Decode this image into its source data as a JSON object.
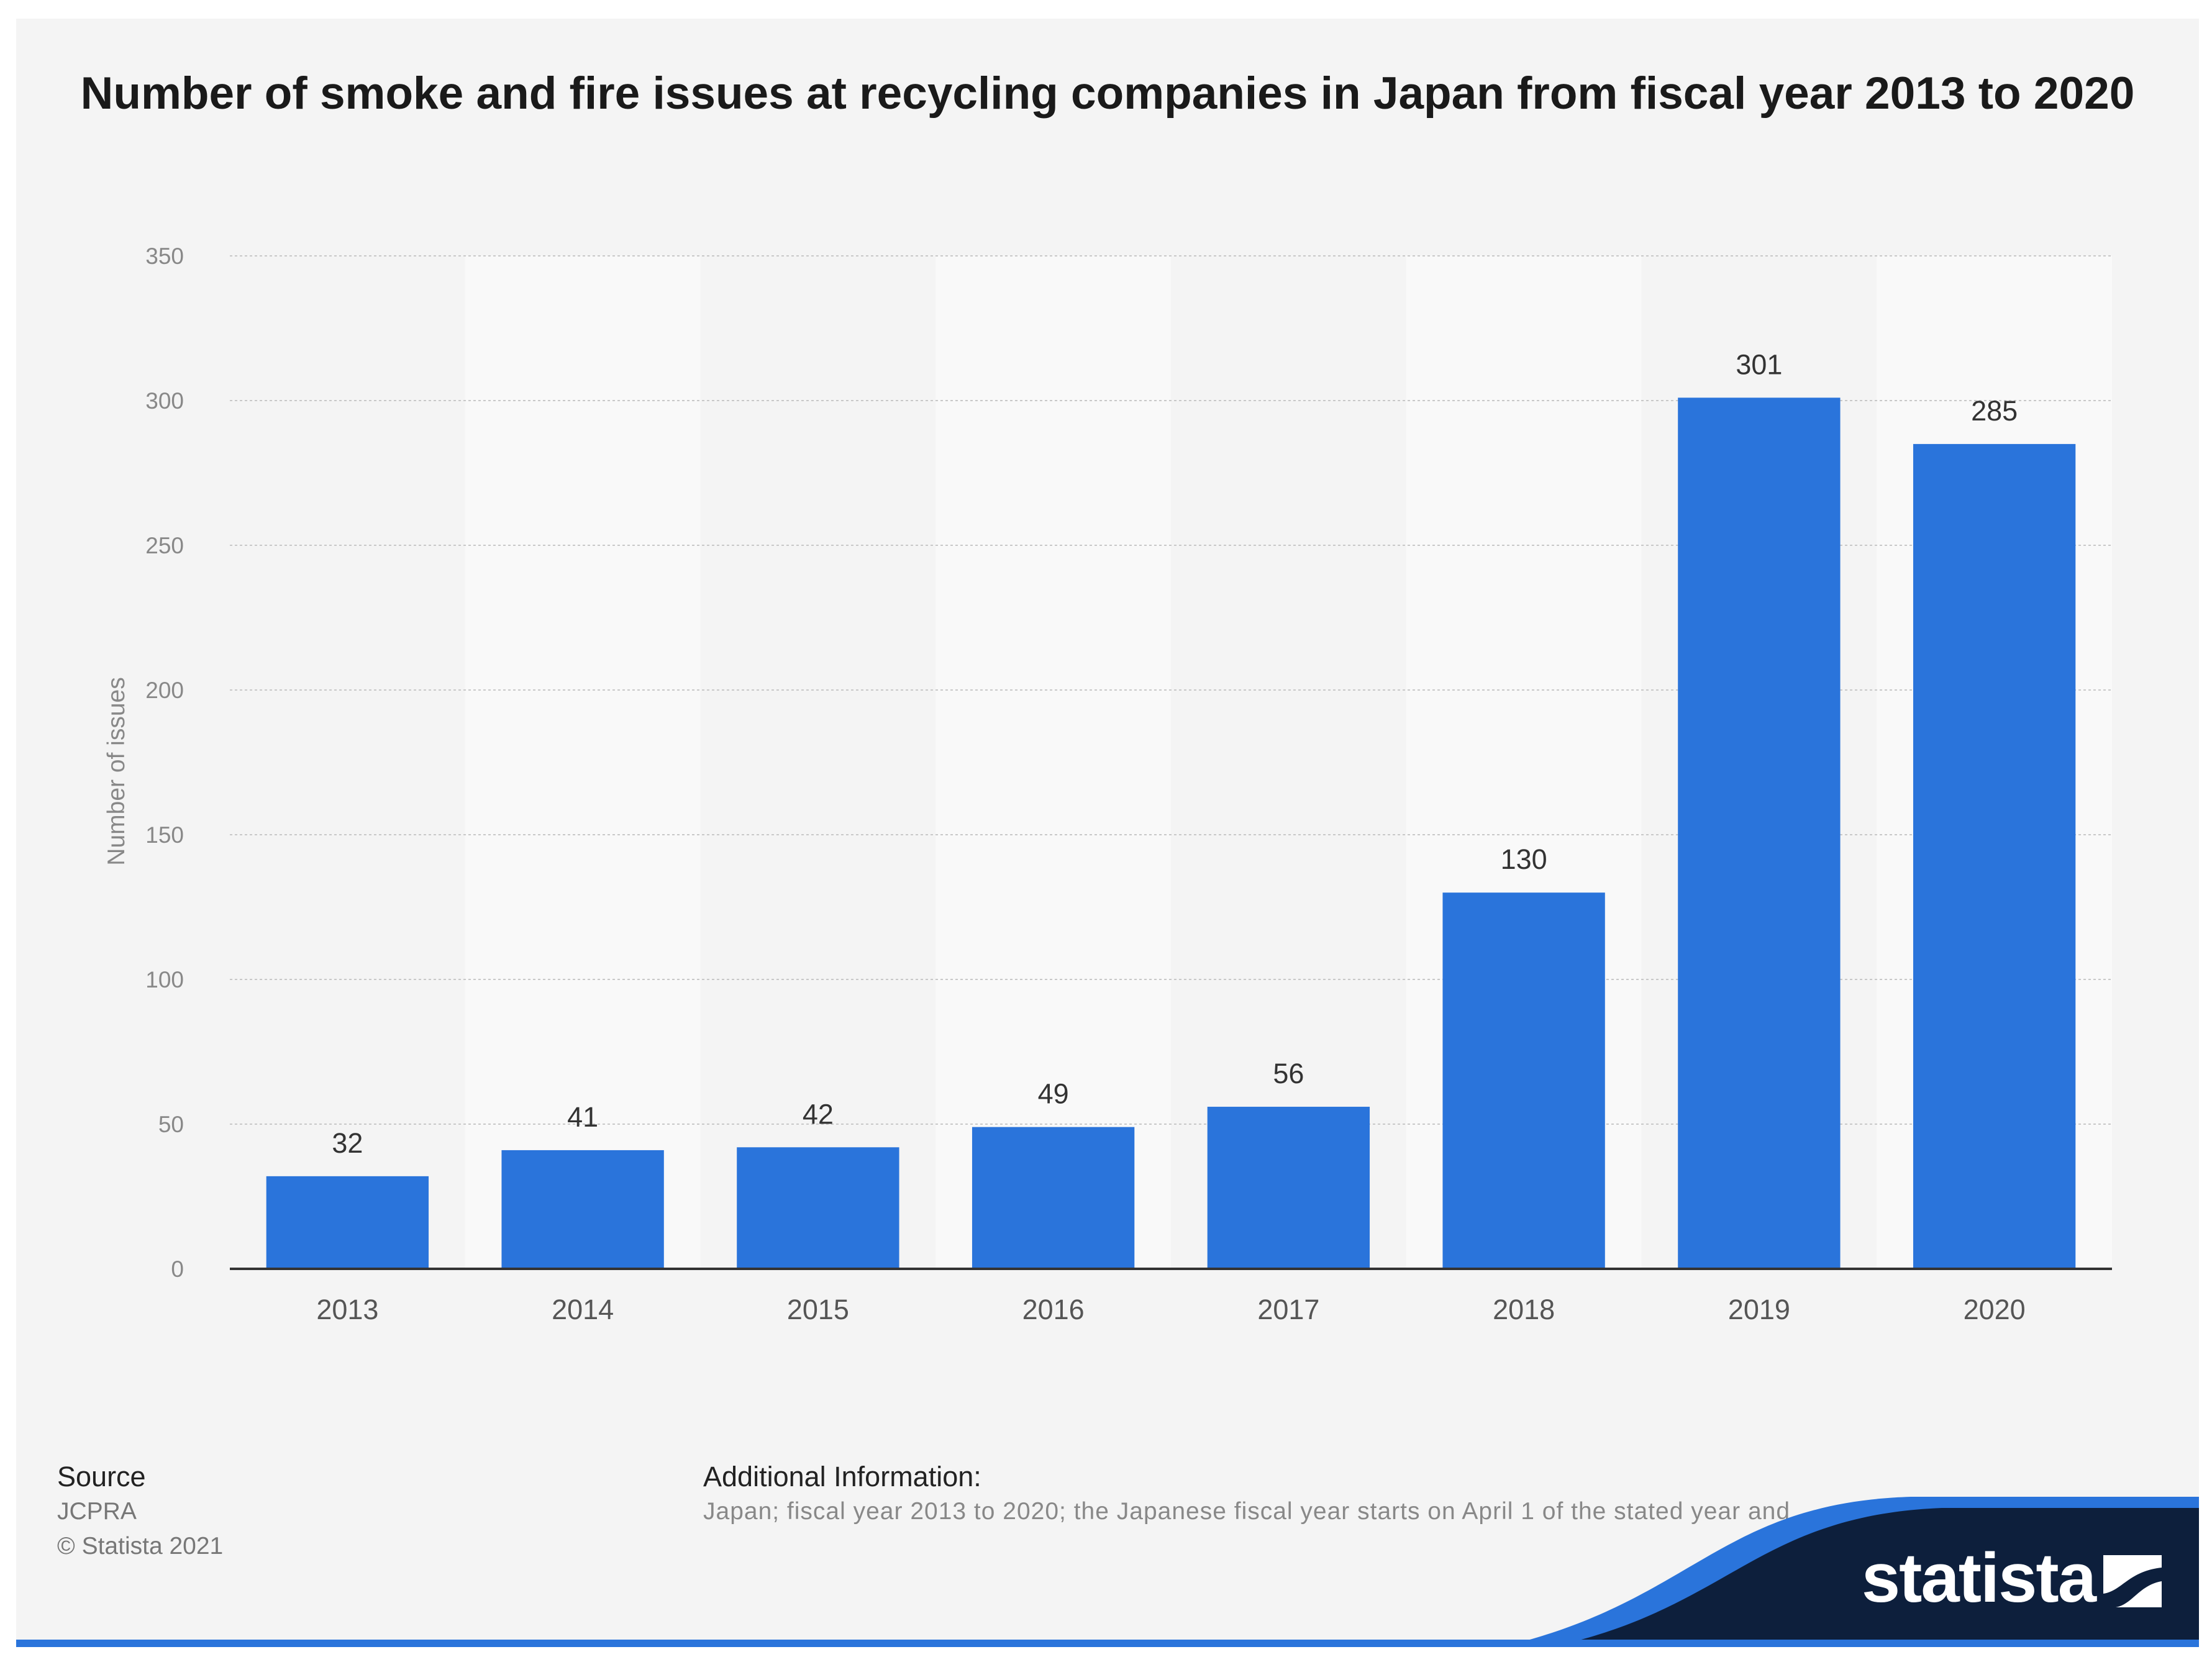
{
  "chart_data": {
    "type": "bar",
    "title": "Number of smoke and fire issues at recycling companies in Japan from fiscal year 2013 to 2020",
    "categories": [
      "2013",
      "2014",
      "2015",
      "2016",
      "2017",
      "2018",
      "2019",
      "2020"
    ],
    "values": [
      32,
      41,
      42,
      49,
      56,
      130,
      301,
      285
    ],
    "xlabel": "",
    "ylabel": "Number of issues",
    "ylim": [
      0,
      350
    ],
    "yticks": [
      "0",
      "50",
      "100",
      "150",
      "200",
      "250",
      "300",
      "350"
    ],
    "grid": true,
    "bar_color": "#2a74db"
  },
  "footer": {
    "source_label": "Source",
    "source_value": "JCPRA",
    "copyright": "© Statista 2021",
    "info_label": "Additional Information:",
    "info_text": "Japan; fiscal year 2013 to 2020; the Japanese fiscal year starts on April 1 of the stated year and"
  },
  "brand": {
    "name": "statista",
    "dark_color": "#0d1f3c",
    "accent_color": "#2a74db"
  }
}
